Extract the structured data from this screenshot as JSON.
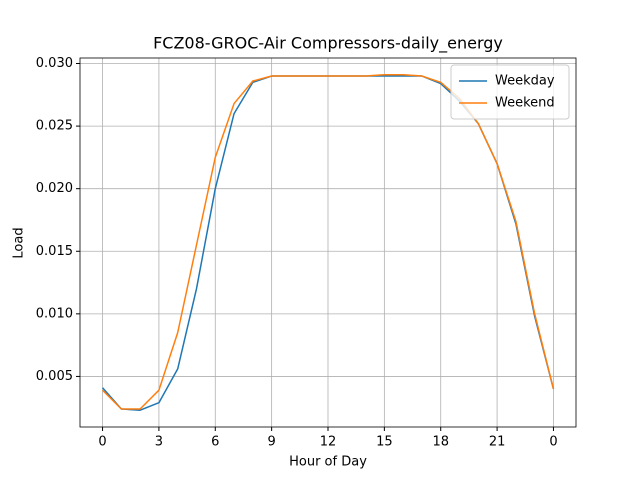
{
  "chart_data": {
    "type": "line",
    "title": "FCZ08-GROC-Air Compressors-daily_energy",
    "x_label": "Hour of Day",
    "y_label": "Load",
    "x": [
      0,
      1,
      2,
      3,
      4,
      5,
      6,
      7,
      8,
      9,
      10,
      11,
      12,
      13,
      14,
      15,
      16,
      17,
      18,
      19,
      20,
      21,
      22,
      23,
      24
    ],
    "series": [
      {
        "name": "Weekday",
        "color": "#1f77b4",
        "values": [
          0.0041,
          0.0024,
          0.0023,
          0.0029,
          0.0056,
          0.012,
          0.02,
          0.026,
          0.0285,
          0.029,
          0.029,
          0.029,
          0.029,
          0.029,
          0.029,
          0.029,
          0.029,
          0.029,
          0.0284,
          0.027,
          0.0252,
          0.022,
          0.0172,
          0.0098,
          0.004
        ]
      },
      {
        "name": "Weekend",
        "color": "#ff7f0e",
        "values": [
          0.0039,
          0.0024,
          0.0024,
          0.0039,
          0.0085,
          0.0155,
          0.0225,
          0.0268,
          0.0286,
          0.029,
          0.029,
          0.029,
          0.029,
          0.029,
          0.029,
          0.0291,
          0.0291,
          0.029,
          0.0285,
          0.0272,
          0.0252,
          0.022,
          0.0174,
          0.01,
          0.004
        ]
      }
    ],
    "xlim": [
      -1.2,
      25.2
    ],
    "xticks": [
      0,
      3,
      6,
      9,
      12,
      15,
      18,
      21,
      {
        "value": 24,
        "label": "0"
      }
    ],
    "ylim": [
      0.00096,
      0.03044
    ],
    "yticks": [
      0.005,
      {
        "value": 0.01,
        "label": "0.010"
      },
      0.015,
      {
        "value": 0.02,
        "label": "0.020"
      },
      0.025,
      {
        "value": 0.03,
        "label": "0.030"
      }
    ],
    "grid": true,
    "legend": "upper right"
  }
}
